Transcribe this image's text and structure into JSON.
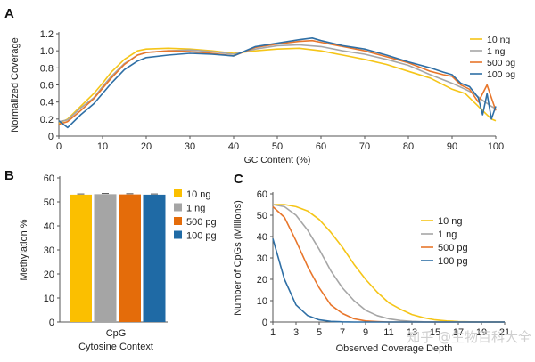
{
  "colors": {
    "10 ng": "#f5c518",
    "1 ng": "#a6a6a6",
    "500 pg": "#e8762b",
    "100 pg": "#2f6fa5",
    "bar_10ng": "#fbbf00",
    "bar_1ng": "#a5a5a5",
    "bar_500pg": "#e46c0a",
    "bar_100pg": "#1f6aa5"
  },
  "watermark": "知乎 @生物百科大全",
  "chart_data": [
    {
      "panel": "A",
      "type": "line",
      "title": "",
      "xlabel": "GC Content (%)",
      "ylabel": "Normalized Coverage",
      "xlim": [
        0,
        100
      ],
      "ylim": [
        0,
        1.2
      ],
      "xticks": [
        "0",
        "10",
        "20",
        "30",
        "40",
        "50",
        "60",
        "70",
        "80",
        "90",
        "100"
      ],
      "yticks": [
        "0",
        "0.2",
        "0.4",
        "0.6",
        "0.8",
        "1.0",
        "1.2"
      ],
      "legend": [
        "10 ng",
        "1 ng",
        "500 pg",
        "100 pg"
      ],
      "series": [
        {
          "name": "10 ng",
          "x": [
            0,
            2,
            5,
            8,
            10,
            12,
            15,
            18,
            20,
            25,
            30,
            35,
            40,
            45,
            50,
            55,
            60,
            65,
            70,
            75,
            80,
            85,
            90,
            93,
            95,
            97,
            99,
            100
          ],
          "y": [
            0.15,
            0.2,
            0.35,
            0.5,
            0.62,
            0.75,
            0.9,
            1.0,
            1.02,
            1.03,
            1.02,
            1.0,
            0.97,
            1.0,
            1.02,
            1.03,
            1.0,
            0.95,
            0.9,
            0.84,
            0.76,
            0.68,
            0.55,
            0.5,
            0.4,
            0.3,
            0.2,
            0.18
          ]
        },
        {
          "name": "1 ng",
          "x": [
            0,
            2,
            5,
            8,
            10,
            12,
            15,
            18,
            20,
            25,
            30,
            35,
            40,
            45,
            50,
            55,
            60,
            65,
            70,
            75,
            80,
            85,
            90,
            93,
            95,
            97,
            99,
            100
          ],
          "y": [
            0.17,
            0.19,
            0.33,
            0.45,
            0.58,
            0.7,
            0.85,
            0.95,
            0.98,
            1.0,
            1.01,
            0.99,
            0.96,
            1.02,
            1.06,
            1.07,
            1.05,
            1.0,
            0.96,
            0.9,
            0.83,
            0.72,
            0.62,
            0.55,
            0.5,
            0.42,
            0.35,
            0.32
          ]
        },
        {
          "name": "500 pg",
          "x": [
            0,
            2,
            5,
            8,
            10,
            12,
            15,
            18,
            20,
            25,
            30,
            35,
            40,
            45,
            50,
            55,
            58,
            60,
            65,
            70,
            75,
            80,
            85,
            88,
            90,
            92,
            94,
            96,
            98,
            100
          ],
          "y": [
            0.14,
            0.17,
            0.3,
            0.44,
            0.56,
            0.68,
            0.84,
            0.95,
            0.98,
            1.0,
            0.99,
            0.97,
            0.94,
            1.04,
            1.08,
            1.11,
            1.12,
            1.1,
            1.05,
            1.0,
            0.93,
            0.86,
            0.76,
            0.72,
            0.7,
            0.6,
            0.55,
            0.4,
            0.6,
            0.3
          ]
        },
        {
          "name": "100 pg",
          "x": [
            0,
            2,
            5,
            8,
            10,
            12,
            15,
            18,
            20,
            25,
            30,
            35,
            40,
            45,
            50,
            55,
            58,
            60,
            65,
            70,
            75,
            80,
            85,
            88,
            90,
            92,
            94,
            96,
            97,
            98,
            99,
            100
          ],
          "y": [
            0.18,
            0.1,
            0.25,
            0.38,
            0.5,
            0.62,
            0.78,
            0.88,
            0.92,
            0.95,
            0.97,
            0.96,
            0.94,
            1.05,
            1.09,
            1.13,
            1.15,
            1.12,
            1.06,
            1.02,
            0.95,
            0.87,
            0.8,
            0.75,
            0.72,
            0.62,
            0.58,
            0.45,
            0.25,
            0.5,
            0.2,
            0.35
          ]
        }
      ]
    },
    {
      "panel": "B",
      "type": "bar",
      "title": "",
      "xlabel": "Cytosine Context",
      "ylabel": "Methylation %",
      "ylim": [
        0,
        60
      ],
      "yticks": [
        "0",
        "10",
        "20",
        "30",
        "40",
        "50",
        "60"
      ],
      "categories": [
        "CpG"
      ],
      "legend": [
        "10 ng",
        "1 ng",
        "500 pg",
        "100 pg"
      ],
      "series": [
        {
          "name": "10 ng",
          "values": [
            53.0
          ]
        },
        {
          "name": "1 ng",
          "values": [
            53.2
          ]
        },
        {
          "name": "500 pg",
          "values": [
            53.1
          ]
        },
        {
          "name": "100 pg",
          "values": [
            53.0
          ]
        }
      ]
    },
    {
      "panel": "C",
      "type": "line",
      "title": "",
      "xlabel": "Observed Coverage Depth",
      "ylabel": "Number of CpGs (Millions)",
      "xlim": [
        1,
        21
      ],
      "ylim": [
        0,
        60
      ],
      "xticks": [
        "1",
        "3",
        "5",
        "7",
        "9",
        "11",
        "13",
        "15",
        "17",
        "19",
        "21"
      ],
      "yticks": [
        "0",
        "10",
        "20",
        "30",
        "40",
        "50",
        "60"
      ],
      "legend": [
        "10 ng",
        "1 ng",
        "500 pg",
        "100 pg"
      ],
      "series": [
        {
          "name": "10 ng",
          "x": [
            1,
            2,
            3,
            4,
            5,
            6,
            7,
            8,
            9,
            10,
            11,
            12,
            13,
            14,
            15,
            16,
            17,
            18,
            19,
            20,
            21
          ],
          "y": [
            55,
            55,
            54,
            52,
            48,
            42,
            35,
            27,
            20,
            14,
            9,
            6,
            3.5,
            2,
            1,
            0.5,
            0.2,
            0.1,
            0,
            0,
            0
          ]
        },
        {
          "name": "1 ng",
          "x": [
            1,
            2,
            3,
            4,
            5,
            6,
            7,
            8,
            9,
            10,
            11,
            12,
            13,
            14,
            15,
            16,
            17,
            18,
            19,
            20,
            21
          ],
          "y": [
            55,
            54,
            50,
            43,
            34,
            24,
            16,
            10,
            5.5,
            3,
            1.5,
            0.7,
            0.3,
            0.1,
            0,
            0,
            0,
            0,
            0,
            0,
            0
          ]
        },
        {
          "name": "500 pg",
          "x": [
            1,
            2,
            3,
            4,
            5,
            6,
            7,
            8,
            9,
            10,
            11,
            12,
            13,
            14,
            15,
            16,
            17,
            18,
            19,
            20,
            21
          ],
          "y": [
            54,
            49,
            38,
            26,
            16,
            8,
            4,
            1.5,
            0.5,
            0.2,
            0,
            0,
            0,
            0,
            0,
            0,
            0,
            0,
            0,
            0,
            0
          ]
        },
        {
          "name": "100 pg",
          "x": [
            1,
            2,
            3,
            4,
            5,
            6,
            7,
            8,
            9,
            10,
            11,
            12,
            13,
            14,
            15,
            16,
            17,
            18,
            19,
            20,
            21
          ],
          "y": [
            39,
            20,
            8,
            3,
            1,
            0.3,
            0.1,
            0,
            0,
            0,
            0,
            0,
            0,
            0,
            0,
            0,
            0,
            0,
            0,
            0,
            0
          ]
        }
      ]
    }
  ]
}
